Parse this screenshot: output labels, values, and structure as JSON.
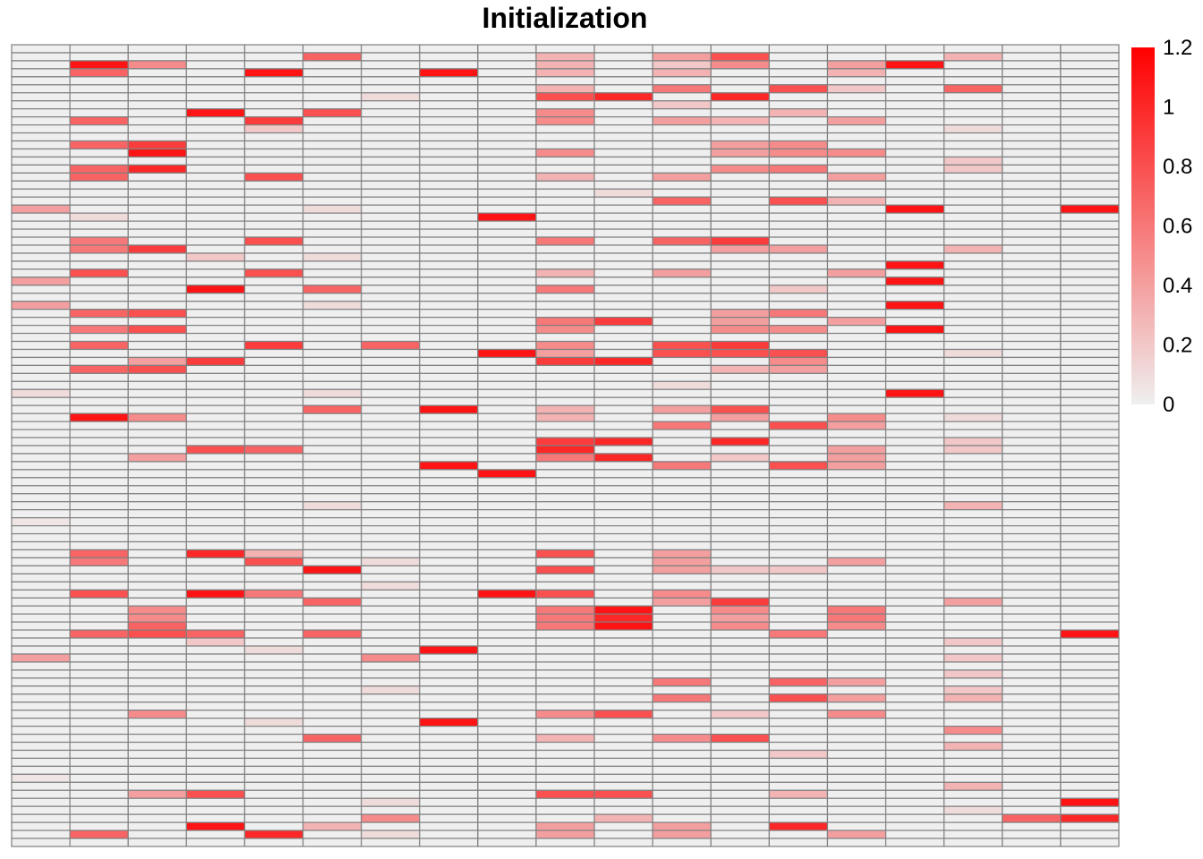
{
  "chart_data": {
    "type": "heatmap",
    "title": "Initialization",
    "n_rows": 100,
    "n_cols": 19,
    "cell_border_color": "#808080",
    "color_scale": {
      "low": "#efefef",
      "high": "#ff0000",
      "min": 0,
      "max": 1.2
    },
    "legend": {
      "position": "right",
      "ticks": [
        "1.2",
        "1",
        "0.8",
        "0.6",
        "0.4",
        "0.2",
        "0"
      ],
      "tick_values": [
        1.2,
        1.0,
        0.8,
        0.6,
        0.4,
        0.2,
        0.0
      ]
    },
    "nonzero_cells": [
      [
        2,
        1,
        1.1
      ],
      [
        2,
        2,
        0.5
      ],
      [
        3,
        1,
        0.7
      ],
      [
        3,
        4,
        1.1
      ],
      [
        3,
        7,
        1.1
      ],
      [
        1,
        5,
        0.7
      ],
      [
        1,
        9,
        0.3
      ],
      [
        2,
        9,
        0.3
      ],
      [
        3,
        9,
        0.3
      ],
      [
        1,
        11,
        0.4
      ],
      [
        2,
        11,
        0.2
      ],
      [
        3,
        11,
        0.3
      ],
      [
        1,
        12,
        0.8
      ],
      [
        2,
        12,
        0.5
      ],
      [
        2,
        14,
        0.4
      ],
      [
        3,
        14,
        0.3
      ],
      [
        2,
        15,
        1.1
      ],
      [
        1,
        16,
        0.3
      ],
      [
        5,
        9,
        0.3
      ],
      [
        6,
        9,
        0.8
      ],
      [
        6,
        10,
        1.0
      ],
      [
        5,
        11,
        0.6
      ],
      [
        6,
        12,
        1.0
      ],
      [
        5,
        13,
        0.8
      ],
      [
        5,
        14,
        0.2
      ],
      [
        5,
        16,
        0.7
      ],
      [
        7,
        11,
        0.2
      ],
      [
        6,
        6,
        0.1
      ],
      [
        8,
        3,
        1.1
      ],
      [
        9,
        1,
        0.7
      ],
      [
        9,
        4,
        0.9
      ],
      [
        10,
        4,
        0.2
      ],
      [
        8,
        5,
        0.8
      ],
      [
        8,
        9,
        0.5
      ],
      [
        9,
        9,
        0.5
      ],
      [
        9,
        11,
        0.4
      ],
      [
        9,
        12,
        0.3
      ],
      [
        8,
        13,
        0.3
      ],
      [
        9,
        14,
        0.4
      ],
      [
        10,
        16,
        0.1
      ],
      [
        12,
        1,
        0.7
      ],
      [
        12,
        2,
        0.9
      ],
      [
        13,
        2,
        1.1
      ],
      [
        13,
        9,
        0.5
      ],
      [
        12,
        12,
        0.4
      ],
      [
        13,
        12,
        0.4
      ],
      [
        12,
        13,
        0.5
      ],
      [
        13,
        13,
        0.5
      ],
      [
        13,
        14,
        0.5
      ],
      [
        15,
        1,
        0.7
      ],
      [
        15,
        2,
        1.0
      ],
      [
        16,
        1,
        0.7
      ],
      [
        16,
        4,
        0.8
      ],
      [
        16,
        9,
        0.3
      ],
      [
        15,
        12,
        0.5
      ],
      [
        15,
        13,
        0.6
      ],
      [
        16,
        11,
        0.4
      ],
      [
        16,
        14,
        0.4
      ],
      [
        14,
        16,
        0.2
      ],
      [
        15,
        16,
        0.2
      ],
      [
        18,
        10,
        0.1
      ],
      [
        19,
        11,
        0.7
      ],
      [
        19,
        13,
        0.8
      ],
      [
        19,
        14,
        0.3
      ],
      [
        20,
        0,
        0.4
      ],
      [
        21,
        1,
        0.1
      ],
      [
        20,
        5,
        0.1
      ],
      [
        20,
        15,
        1.1
      ],
      [
        21,
        8,
        1.1
      ],
      [
        20,
        18,
        1.1
      ],
      [
        24,
        1,
        0.6
      ],
      [
        25,
        1,
        0.6
      ],
      [
        25,
        2,
        0.9
      ],
      [
        24,
        4,
        0.8
      ],
      [
        24,
        9,
        0.6
      ],
      [
        24,
        11,
        0.7
      ],
      [
        24,
        12,
        0.9
      ],
      [
        25,
        12,
        0.4
      ],
      [
        25,
        13,
        0.4
      ],
      [
        25,
        16,
        0.3
      ],
      [
        26,
        3,
        0.2
      ],
      [
        26,
        5,
        0.1
      ],
      [
        27,
        15,
        1.1
      ],
      [
        28,
        1,
        0.8
      ],
      [
        28,
        4,
        0.8
      ],
      [
        28,
        9,
        0.3
      ],
      [
        28,
        11,
        0.4
      ],
      [
        28,
        14,
        0.4
      ],
      [
        29,
        0,
        0.4
      ],
      [
        29,
        15,
        1.1
      ],
      [
        30,
        3,
        1.1
      ],
      [
        30,
        5,
        0.7
      ],
      [
        30,
        9,
        0.6
      ],
      [
        30,
        13,
        0.2
      ],
      [
        32,
        0,
        0.4
      ],
      [
        33,
        1,
        0.7
      ],
      [
        33,
        2,
        0.8
      ],
      [
        32,
        5,
        0.1
      ],
      [
        32,
        15,
        1.1
      ],
      [
        33,
        12,
        0.4
      ],
      [
        33,
        13,
        0.6
      ],
      [
        34,
        9,
        0.6
      ],
      [
        34,
        10,
        0.9
      ],
      [
        34,
        12,
        0.4
      ],
      [
        34,
        14,
        0.4
      ],
      [
        35,
        1,
        0.6
      ],
      [
        35,
        2,
        0.8
      ],
      [
        35,
        9,
        0.5
      ],
      [
        35,
        12,
        0.5
      ],
      [
        35,
        13,
        0.5
      ],
      [
        35,
        15,
        1.1
      ],
      [
        37,
        1,
        0.7
      ],
      [
        37,
        4,
        0.9
      ],
      [
        37,
        6,
        0.7
      ],
      [
        37,
        9,
        0.5
      ],
      [
        37,
        11,
        0.8
      ],
      [
        37,
        12,
        0.9
      ],
      [
        38,
        8,
        1.1
      ],
      [
        38,
        9,
        0.4
      ],
      [
        38,
        11,
        0.8
      ],
      [
        38,
        12,
        0.8
      ],
      [
        38,
        13,
        0.8
      ],
      [
        38,
        16,
        0.1
      ],
      [
        39,
        2,
        0.4
      ],
      [
        39,
        3,
        0.9
      ],
      [
        39,
        9,
        0.9
      ],
      [
        39,
        10,
        1.0
      ],
      [
        39,
        13,
        0.5
      ],
      [
        40,
        1,
        0.7
      ],
      [
        40,
        2,
        0.8
      ],
      [
        40,
        12,
        0.3
      ],
      [
        40,
        13,
        0.4
      ],
      [
        42,
        11,
        0.1
      ],
      [
        43,
        0,
        0.1
      ],
      [
        43,
        5,
        0.1
      ],
      [
        43,
        15,
        1.1
      ],
      [
        45,
        5,
        0.7
      ],
      [
        45,
        7,
        1.1
      ],
      [
        45,
        9,
        0.3
      ],
      [
        45,
        11,
        0.4
      ],
      [
        45,
        12,
        0.8
      ],
      [
        46,
        1,
        1.1
      ],
      [
        46,
        2,
        0.5
      ],
      [
        46,
        9,
        0.3
      ],
      [
        46,
        12,
        0.4
      ],
      [
        46,
        14,
        0.5
      ],
      [
        46,
        16,
        0.1
      ],
      [
        47,
        11,
        0.6
      ],
      [
        47,
        13,
        0.8
      ],
      [
        47,
        14,
        0.4
      ],
      [
        49,
        9,
        0.9
      ],
      [
        49,
        10,
        1.0
      ],
      [
        49,
        12,
        1.0
      ],
      [
        50,
        3,
        0.8
      ],
      [
        50,
        4,
        0.7
      ],
      [
        50,
        9,
        1.0
      ],
      [
        51,
        2,
        0.4
      ],
      [
        51,
        9,
        0.6
      ],
      [
        51,
        10,
        1.0
      ],
      [
        51,
        12,
        0.2
      ],
      [
        50,
        14,
        0.4
      ],
      [
        51,
        14,
        0.4
      ],
      [
        49,
        16,
        0.2
      ],
      [
        50,
        16,
        0.2
      ],
      [
        52,
        7,
        1.1
      ],
      [
        52,
        11,
        0.6
      ],
      [
        52,
        13,
        0.8
      ],
      [
        52,
        14,
        0.4
      ],
      [
        53,
        8,
        1.1
      ],
      [
        57,
        5,
        0.1
      ],
      [
        57,
        16,
        0.3
      ],
      [
        59,
        0,
        0.05
      ],
      [
        63,
        1,
        0.7
      ],
      [
        63,
        3,
        1.0
      ],
      [
        63,
        4,
        0.3
      ],
      [
        63,
        9,
        0.8
      ],
      [
        63,
        11,
        0.4
      ],
      [
        64,
        1,
        0.6
      ],
      [
        64,
        4,
        0.8
      ],
      [
        64,
        6,
        0.1
      ],
      [
        64,
        11,
        0.4
      ],
      [
        64,
        14,
        0.4
      ],
      [
        65,
        5,
        1.1
      ],
      [
        65,
        9,
        0.8
      ],
      [
        65,
        11,
        0.4
      ],
      [
        65,
        12,
        0.2
      ],
      [
        65,
        13,
        0.2
      ],
      [
        67,
        6,
        0.1
      ],
      [
        68,
        1,
        0.8
      ],
      [
        68,
        3,
        1.1
      ],
      [
        68,
        4,
        0.6
      ],
      [
        68,
        8,
        1.1
      ],
      [
        68,
        9,
        0.8
      ],
      [
        68,
        11,
        0.5
      ],
      [
        69,
        5,
        0.7
      ],
      [
        69,
        11,
        0.4
      ],
      [
        69,
        12,
        0.9
      ],
      [
        69,
        16,
        0.4
      ],
      [
        70,
        2,
        0.5
      ],
      [
        70,
        9,
        0.6
      ],
      [
        70,
        10,
        1.1
      ],
      [
        70,
        12,
        0.5
      ],
      [
        70,
        14,
        0.6
      ],
      [
        71,
        2,
        0.5
      ],
      [
        71,
        9,
        0.6
      ],
      [
        71,
        10,
        1.0
      ],
      [
        71,
        12,
        0.4
      ],
      [
        71,
        14,
        0.6
      ],
      [
        72,
        2,
        0.7
      ],
      [
        72,
        9,
        0.6
      ],
      [
        72,
        10,
        1.1
      ],
      [
        72,
        12,
        0.5
      ],
      [
        72,
        14,
        0.5
      ],
      [
        73,
        1,
        0.7
      ],
      [
        73,
        2,
        0.8
      ],
      [
        73,
        3,
        0.7
      ],
      [
        73,
        5,
        0.7
      ],
      [
        73,
        13,
        0.6
      ],
      [
        73,
        18,
        1.1
      ],
      [
        74,
        3,
        0.2
      ],
      [
        74,
        16,
        0.2
      ],
      [
        75,
        4,
        0.1
      ],
      [
        75,
        7,
        1.1
      ],
      [
        76,
        0,
        0.4
      ],
      [
        76,
        6,
        0.5
      ],
      [
        76,
        16,
        0.2
      ],
      [
        78,
        16,
        0.2
      ],
      [
        79,
        11,
        0.6
      ],
      [
        79,
        13,
        0.7
      ],
      [
        79,
        14,
        0.4
      ],
      [
        80,
        16,
        0.2
      ],
      [
        81,
        11,
        0.6
      ],
      [
        81,
        13,
        0.8
      ],
      [
        81,
        14,
        0.4
      ],
      [
        81,
        16,
        0.3
      ],
      [
        80,
        6,
        0.1
      ],
      [
        83,
        2,
        0.5
      ],
      [
        83,
        9,
        0.5
      ],
      [
        83,
        10,
        0.8
      ],
      [
        83,
        12,
        0.2
      ],
      [
        83,
        14,
        0.5
      ],
      [
        84,
        4,
        0.1
      ],
      [
        84,
        7,
        1.1
      ],
      [
        85,
        16,
        0.5
      ],
      [
        86,
        5,
        0.7
      ],
      [
        86,
        9,
        0.3
      ],
      [
        86,
        11,
        0.5
      ],
      [
        86,
        12,
        0.8
      ],
      [
        87,
        16,
        0.3
      ],
      [
        88,
        13,
        0.2
      ],
      [
        91,
        0,
        0.05
      ],
      [
        92,
        16,
        0.3
      ],
      [
        93,
        2,
        0.4
      ],
      [
        93,
        3,
        0.8
      ],
      [
        93,
        9,
        0.8
      ],
      [
        93,
        10,
        0.8
      ],
      [
        93,
        13,
        0.3
      ],
      [
        94,
        6,
        0.1
      ],
      [
        94,
        18,
        1.1
      ],
      [
        95,
        16,
        0.1
      ],
      [
        96,
        6,
        0.5
      ],
      [
        96,
        10,
        0.3
      ],
      [
        96,
        17,
        0.7
      ],
      [
        96,
        18,
        1.0
      ],
      [
        97,
        3,
        1.1
      ],
      [
        97,
        5,
        0.3
      ],
      [
        97,
        9,
        0.4
      ],
      [
        97,
        11,
        0.4
      ],
      [
        97,
        13,
        1.0
      ],
      [
        98,
        1,
        0.7
      ],
      [
        98,
        4,
        1.0
      ],
      [
        98,
        6,
        0.1
      ],
      [
        98,
        9,
        0.4
      ],
      [
        98,
        11,
        0.4
      ],
      [
        98,
        14,
        0.4
      ]
    ]
  }
}
